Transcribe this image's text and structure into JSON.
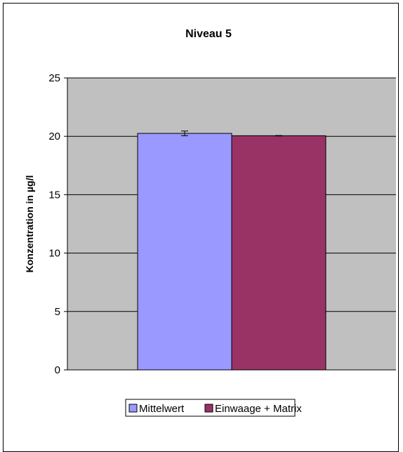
{
  "chart_data": {
    "type": "bar",
    "title": "Niveau 5",
    "xlabel": "",
    "ylabel": "Konzentration in µg/l",
    "categories": [
      ""
    ],
    "ylim": [
      0,
      25
    ],
    "yticks": [
      "0",
      "5",
      "10",
      "15",
      "20",
      "25"
    ],
    "grid": true,
    "legend_position": "bottom",
    "plot_background": "#c0c0c0",
    "series": [
      {
        "name": "Mittelwert",
        "values": [
          20.25
        ],
        "error": [
          0.2
        ],
        "color": "#9999ff"
      },
      {
        "name": "Einwaage + Matrix",
        "values": [
          20.05
        ],
        "error": [
          0.02
        ],
        "color": "#993366"
      }
    ]
  }
}
